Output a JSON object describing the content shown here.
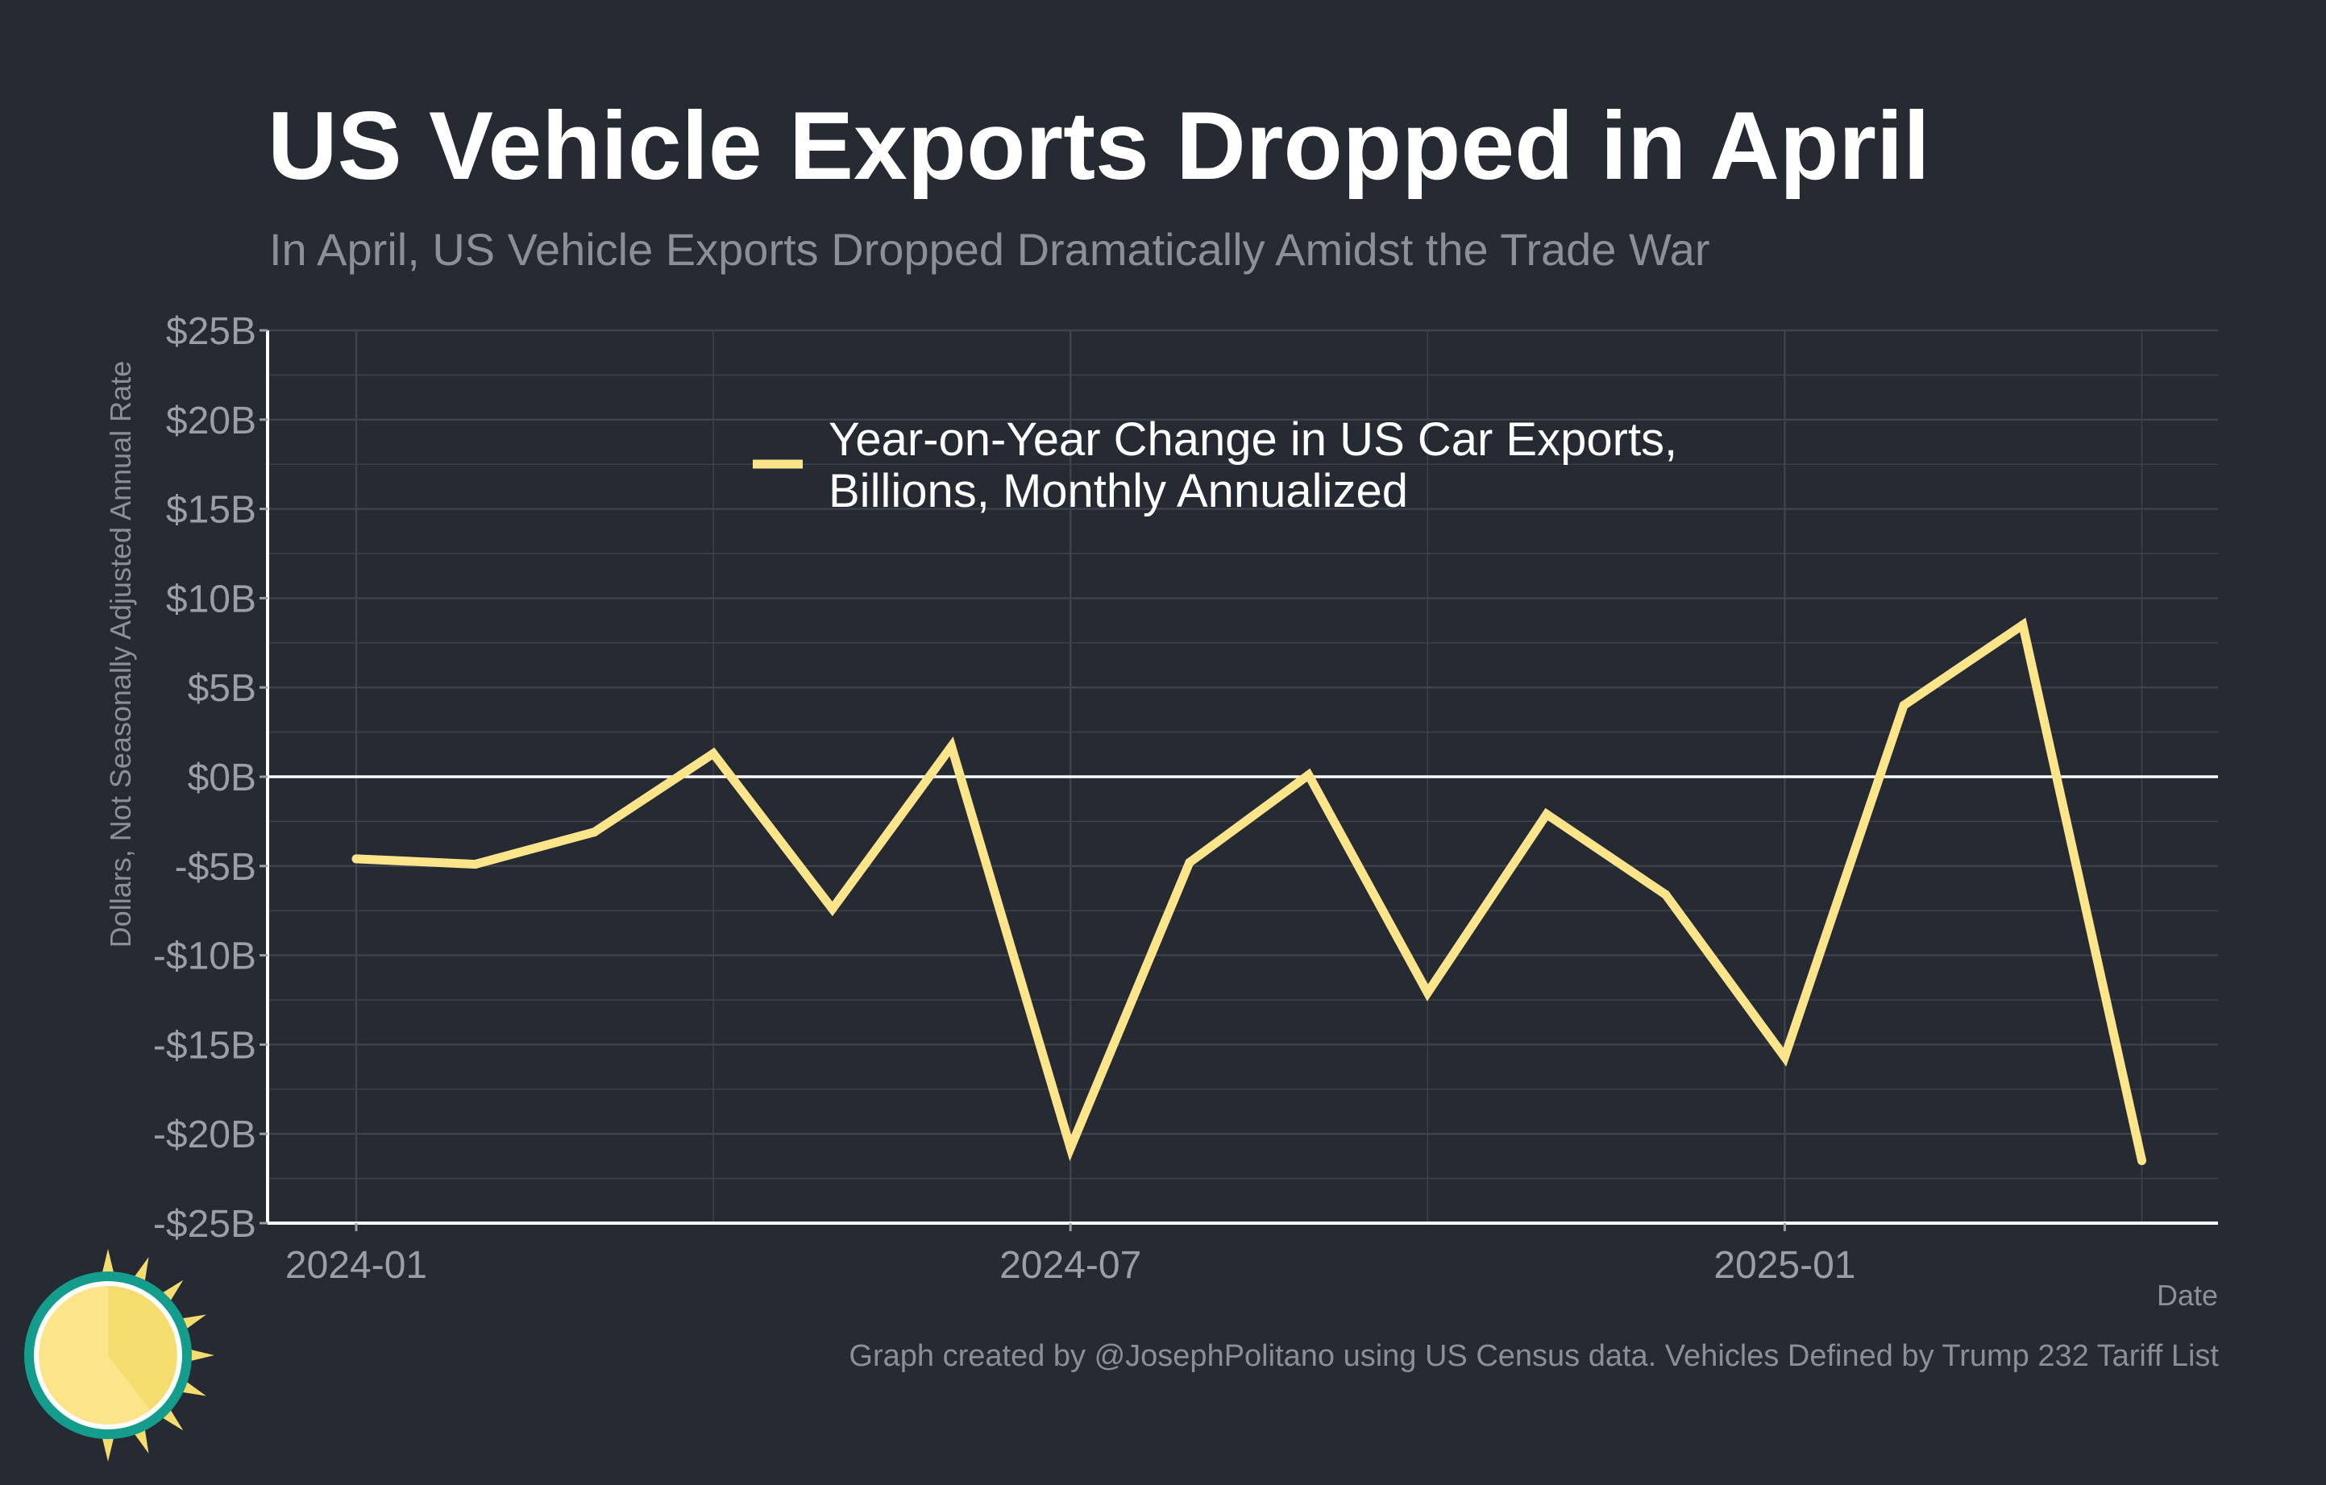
{
  "title": "US Vehicle Exports Dropped in April",
  "subtitle": "In April, US Vehicle Exports Dropped Dramatically Amidst the Trade War",
  "credit": "Graph created by @JosephPolitano using US Census data. Vehicles Defined by Trump 232 Tariff List",
  "colors": {
    "background": "#252a33",
    "line": "#fbe48a",
    "grid": "#3e434c",
    "axis": "#ffffff",
    "logo_teal": "#149c8c",
    "logo_yellow": "#f4dc6e"
  },
  "chart_data": {
    "type": "line",
    "xlabel": "Date",
    "ylabel": "Dollars, Not Seasonally Adjusted Annual Rate",
    "ylim": [
      -25,
      25
    ],
    "y_ticks": [
      25,
      20,
      15,
      10,
      5,
      0,
      -5,
      -10,
      -15,
      -20,
      -25
    ],
    "y_tick_labels": [
      "$25B",
      "$20B",
      "$15B",
      "$10B",
      "$5B",
      "$0B",
      "-$5B",
      "-$10B",
      "-$15B",
      "-$20B",
      "-$25B"
    ],
    "x_tick_labels": [
      "2024-01",
      "2024-07",
      "2025-01"
    ],
    "x_tick_index": [
      0,
      6,
      12
    ],
    "grid": true,
    "legend_position": "top-center",
    "x": [
      "2024-01",
      "2024-02",
      "2024-03",
      "2024-04",
      "2024-05",
      "2024-06",
      "2024-07",
      "2024-08",
      "2024-09",
      "2024-10",
      "2024-11",
      "2024-12",
      "2025-01",
      "2025-02",
      "2025-03",
      "2025-04"
    ],
    "series": [
      {
        "name": "Year-on-Year Change in US Car Exports, Billions, Monthly Annualized",
        "legend_lines": [
          "Year-on-Year Change in US Car Exports,",
          "Billions, Monthly Annualized"
        ],
        "values": [
          -4.6,
          -4.9,
          -3.1,
          1.3,
          -7.4,
          1.7,
          -20.8,
          -4.8,
          0.1,
          -12.1,
          -2.1,
          -6.6,
          -15.7,
          4.0,
          8.5,
          -21.5
        ]
      }
    ]
  }
}
